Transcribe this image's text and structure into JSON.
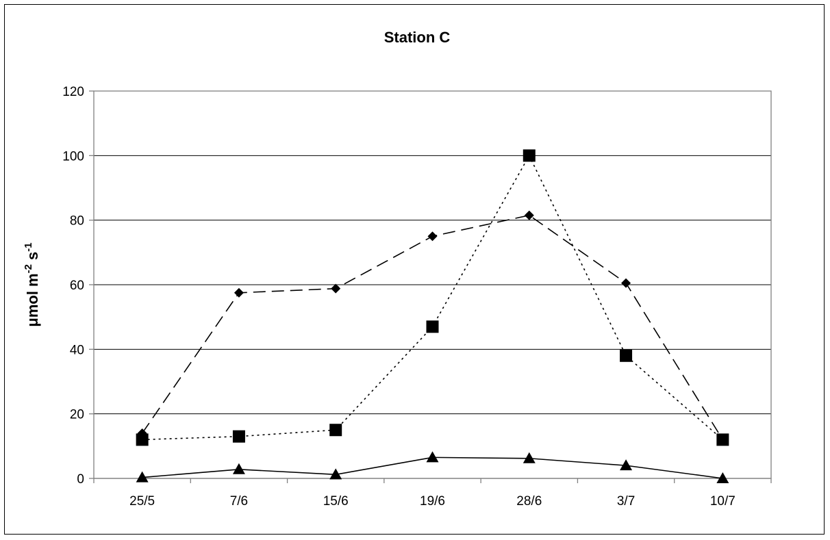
{
  "chart_data": {
    "type": "line",
    "title": "Station C",
    "xlabel": "",
    "ylabel": {
      "main": "μmol m",
      "sup1": "-2",
      "mid": " s",
      "sup2": "-1"
    },
    "categories": [
      "25/5",
      "7/6",
      "15/6",
      "19/6",
      "28/6",
      "3/7",
      "10/7"
    ],
    "ylim": [
      0,
      120
    ],
    "yticks": [
      0,
      20,
      40,
      60,
      80,
      100,
      120
    ],
    "grid": true,
    "legend": "none",
    "series": [
      {
        "marker": "diamond",
        "line_style": "long-dash",
        "color": "#000000",
        "values": [
          14,
          57.5,
          58.8,
          75,
          81.5,
          60.5,
          12
        ]
      },
      {
        "marker": "square",
        "line_style": "dotted",
        "color": "#000000",
        "values": [
          12,
          13,
          15,
          47,
          100,
          38,
          12
        ]
      },
      {
        "marker": "triangle",
        "line_style": "solid",
        "color": "#000000",
        "values": [
          0.3,
          2.8,
          1.2,
          6.5,
          6.2,
          4,
          0
        ]
      }
    ]
  }
}
